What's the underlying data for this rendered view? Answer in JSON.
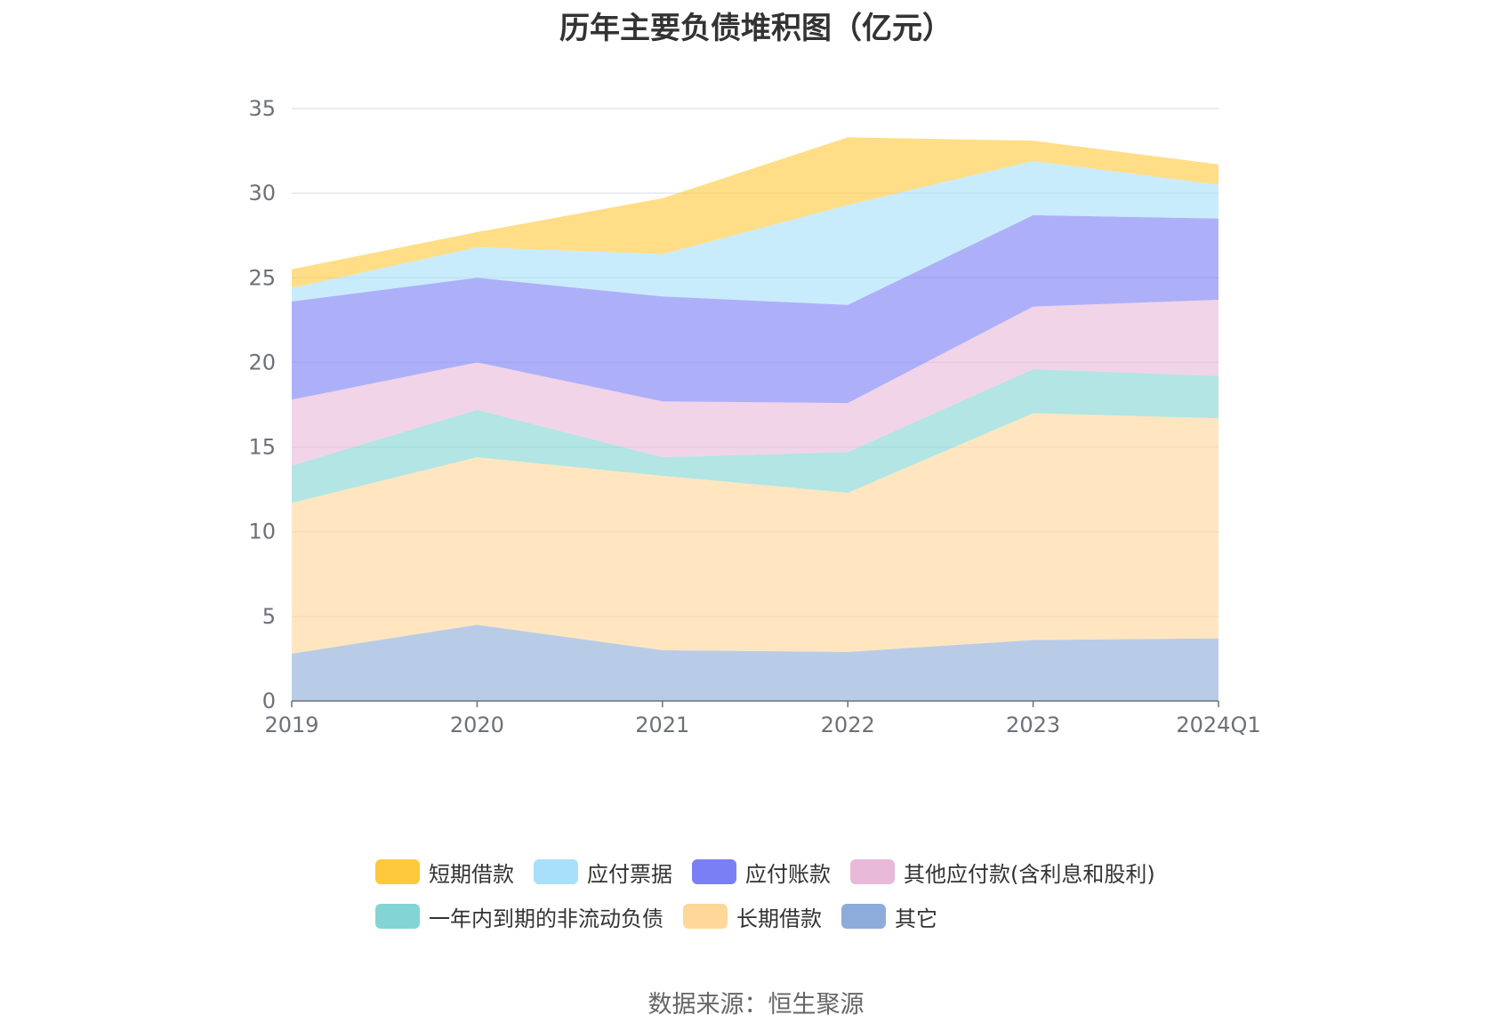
{
  "title": "历年主要负债堆积图（亿元）",
  "source": "数据来源：恒生聚源",
  "chart_data": {
    "type": "area",
    "stacked": true,
    "categories": [
      "2019",
      "2020",
      "2021",
      "2022",
      "2023",
      "2024Q1"
    ],
    "ylim": [
      0,
      35
    ],
    "yticks": [
      0,
      5,
      10,
      15,
      20,
      25,
      30,
      35
    ],
    "grid": true,
    "legend_position": "bottom",
    "series": [
      {
        "name": "其它",
        "color": "#8eacd9",
        "values": [
          2.8,
          4.5,
          3.0,
          2.9,
          3.6,
          3.7
        ]
      },
      {
        "name": "长期借款",
        "color": "#ffd799",
        "values": [
          8.9,
          9.9,
          10.3,
          9.4,
          13.4,
          13.0
        ]
      },
      {
        "name": "一年内到期的非流动负债",
        "color": "#82d5d4",
        "values": [
          2.2,
          2.8,
          1.1,
          2.4,
          2.6,
          2.5
        ]
      },
      {
        "name": "其他应付款(含利息和股利)",
        "color": "#e8b9d8",
        "values": [
          3.9,
          2.8,
          3.3,
          2.9,
          3.7,
          4.5
        ]
      },
      {
        "name": "应付账款",
        "color": "#7b7ff5",
        "values": [
          5.8,
          5.0,
          6.2,
          5.8,
          5.4,
          4.8
        ]
      },
      {
        "name": "应付票据",
        "color": "#a8e0fa",
        "values": [
          0.8,
          1.8,
          2.5,
          5.9,
          3.2,
          2.0
        ]
      },
      {
        "name": "短期借款",
        "color": "#ffc93e",
        "values": [
          1.1,
          0.9,
          3.3,
          4.0,
          1.2,
          1.2
        ]
      }
    ]
  },
  "legend": {
    "rows": [
      [
        {
          "name": "短期借款",
          "color": "#ffc93e"
        },
        {
          "name": "应付票据",
          "color": "#a8e0fa"
        },
        {
          "name": "应付账款",
          "color": "#7b7ff5"
        },
        {
          "name": "其他应付款(含利息和股利)",
          "color": "#e8b9d8"
        }
      ],
      [
        {
          "name": "一年内到期的非流动负债",
          "color": "#82d5d4"
        },
        {
          "name": "长期借款",
          "color": "#ffd799"
        },
        {
          "name": "其它",
          "color": "#8eacd9"
        }
      ]
    ]
  }
}
